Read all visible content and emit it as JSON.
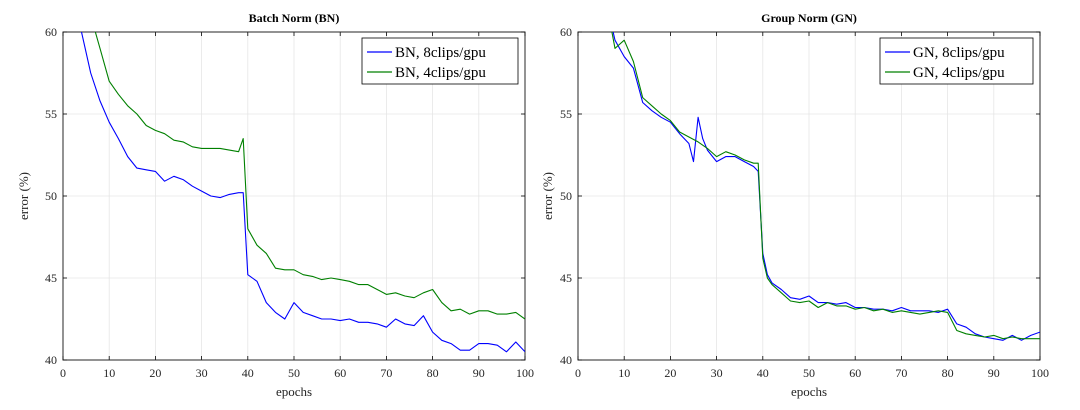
{
  "chart_data": [
    {
      "type": "line",
      "title": "Batch Norm (BN)",
      "xlabel": "epochs",
      "ylabel": "error (%)",
      "xlim": [
        0,
        100
      ],
      "ylim": [
        40,
        60
      ],
      "xticks": [
        "0",
        "10",
        "20",
        "30",
        "40",
        "50",
        "60",
        "70",
        "80",
        "90",
        "100"
      ],
      "yticks": [
        "40",
        "45",
        "50",
        "55",
        "60"
      ],
      "grid": true,
      "legend_position": "top-right",
      "series": [
        {
          "name": "BN, 8clips/gpu",
          "color": "#0000ff",
          "x": [
            2,
            4,
            6,
            8,
            10,
            12,
            14,
            16,
            18,
            20,
            22,
            24,
            26,
            28,
            30,
            32,
            34,
            36,
            38,
            39,
            40,
            42,
            44,
            46,
            48,
            50,
            52,
            54,
            56,
            58,
            60,
            62,
            64,
            66,
            68,
            70,
            72,
            74,
            76,
            78,
            80,
            82,
            84,
            86,
            88,
            90,
            92,
            94,
            96,
            98,
            100
          ],
          "values": [
            62,
            60,
            57.5,
            55.8,
            54.5,
            53.5,
            52.4,
            51.7,
            51.6,
            51.5,
            50.9,
            51.2,
            51,
            50.6,
            50.3,
            50,
            49.9,
            50.1,
            50.2,
            50.2,
            45.2,
            44.8,
            43.5,
            42.9,
            42.5,
            43.5,
            42.9,
            42.7,
            42.5,
            42.5,
            42.4,
            42.5,
            42.3,
            42.3,
            42.2,
            42,
            42.5,
            42.2,
            42.1,
            42.7,
            41.7,
            41.2,
            41,
            40.6,
            40.6,
            41,
            41,
            40.9,
            40.5,
            41.1,
            40.5
          ]
        },
        {
          "name": "BN, 4clips/gpu",
          "color": "#008000",
          "x": [
            6,
            8,
            10,
            12,
            14,
            16,
            18,
            20,
            22,
            24,
            26,
            28,
            30,
            32,
            34,
            36,
            38,
            39,
            40,
            42,
            44,
            46,
            48,
            50,
            52,
            54,
            56,
            58,
            60,
            62,
            64,
            66,
            68,
            70,
            72,
            74,
            76,
            78,
            80,
            82,
            84,
            86,
            88,
            90,
            92,
            94,
            96,
            98,
            100
          ],
          "values": [
            61,
            59,
            57,
            56.2,
            55.5,
            55,
            54.3,
            54,
            53.8,
            53.4,
            53.3,
            53,
            52.9,
            52.9,
            52.9,
            52.8,
            52.7,
            53.5,
            48,
            47,
            46.5,
            45.6,
            45.5,
            45.5,
            45.2,
            45.1,
            44.9,
            45,
            44.9,
            44.8,
            44.6,
            44.6,
            44.3,
            44,
            44.1,
            43.9,
            43.8,
            44.1,
            44.3,
            43.5,
            43,
            43.1,
            42.8,
            43,
            43,
            42.8,
            42.8,
            42.9,
            42.5
          ]
        }
      ]
    },
    {
      "type": "line",
      "title": "Group Norm (GN)",
      "xlabel": "epochs",
      "ylabel": "error (%)",
      "xlim": [
        0,
        100
      ],
      "ylim": [
        40,
        60
      ],
      "xticks": [
        "0",
        "10",
        "20",
        "30",
        "40",
        "50",
        "60",
        "70",
        "80",
        "90",
        "100"
      ],
      "yticks": [
        "40",
        "45",
        "50",
        "55",
        "60"
      ],
      "grid": true,
      "legend_position": "top-right",
      "series": [
        {
          "name": "GN, 8clips/gpu",
          "color": "#0000ff",
          "x": [
            6,
            8,
            10,
            12,
            14,
            16,
            18,
            20,
            22,
            24,
            25,
            26,
            27,
            28,
            30,
            32,
            34,
            36,
            38,
            39,
            40,
            41,
            42,
            44,
            46,
            48,
            50,
            52,
            54,
            56,
            58,
            60,
            62,
            64,
            66,
            68,
            70,
            72,
            74,
            76,
            78,
            80,
            82,
            84,
            86,
            88,
            90,
            92,
            94,
            96,
            98,
            100
          ],
          "values": [
            62,
            59.5,
            58.5,
            57.8,
            55.7,
            55.2,
            54.8,
            54.5,
            53.8,
            53.2,
            52.1,
            54.8,
            53.5,
            52.8,
            52.1,
            52.4,
            52.4,
            52.1,
            51.8,
            51.5,
            46.5,
            45.2,
            44.7,
            44.3,
            43.8,
            43.7,
            43.9,
            43.5,
            43.5,
            43.4,
            43.5,
            43.2,
            43.2,
            43.1,
            43.1,
            43,
            43.2,
            43,
            43,
            43,
            42.9,
            43.1,
            42.2,
            42,
            41.6,
            41.4,
            41.3,
            41.2,
            41.5,
            41.2,
            41.5,
            41.7
          ]
        },
        {
          "name": "GN, 4clips/gpu",
          "color": "#008000",
          "x": [
            6,
            8,
            10,
            12,
            14,
            16,
            18,
            20,
            22,
            24,
            26,
            28,
            30,
            32,
            34,
            36,
            38,
            39,
            40,
            41,
            42,
            44,
            46,
            48,
            50,
            52,
            54,
            56,
            58,
            60,
            62,
            64,
            66,
            68,
            70,
            72,
            74,
            76,
            78,
            80,
            82,
            84,
            86,
            88,
            90,
            92,
            94,
            96,
            98,
            100
          ],
          "values": [
            62,
            59,
            59.5,
            58.2,
            56,
            55.5,
            55,
            54.6,
            53.9,
            53.6,
            53.3,
            52.9,
            52.4,
            52.7,
            52.5,
            52.2,
            52,
            52,
            46.2,
            45,
            44.6,
            44.1,
            43.6,
            43.5,
            43.6,
            43.2,
            43.5,
            43.3,
            43.3,
            43.1,
            43.2,
            43,
            43.1,
            42.9,
            43,
            42.9,
            42.8,
            42.9,
            43,
            42.9,
            41.8,
            41.6,
            41.5,
            41.4,
            41.5,
            41.3,
            41.4,
            41.3,
            41.3,
            41.3
          ]
        }
      ]
    }
  ]
}
